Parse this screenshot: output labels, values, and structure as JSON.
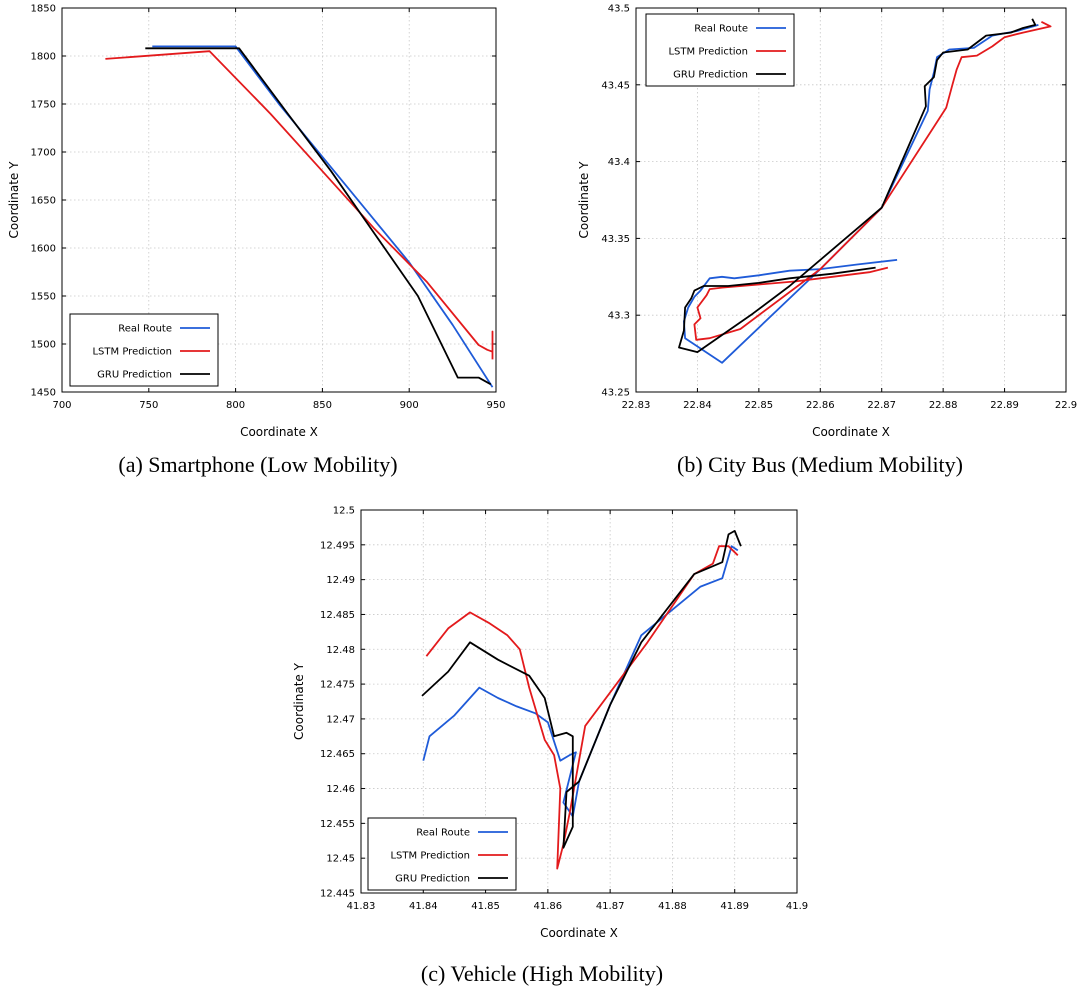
{
  "colors": {
    "real": "#1f5bd8",
    "lstm": "#e31a1c",
    "gru": "#000000"
  },
  "chart_data": [
    {
      "type": "line",
      "caption": "(a) Smartphone (Low Mobility)",
      "xlabel": "Coordinate X",
      "ylabel": "Coordinate Y",
      "xlim": [
        700,
        950
      ],
      "ylim": [
        1450,
        1850
      ],
      "xticks": [
        700,
        750,
        800,
        850,
        900,
        950
      ],
      "yticks": [
        1450,
        1500,
        1550,
        1600,
        1650,
        1700,
        1750,
        1800,
        1850
      ],
      "xtick_labels": [
        "700",
        "750",
        "800",
        "850",
        "900",
        "950"
      ],
      "ytick_labels": [
        "1450",
        "1500",
        "1550",
        "1600",
        "1650",
        "1700",
        "1750",
        "1800",
        "1850"
      ],
      "grid": true,
      "legend_position": "bottom-left",
      "series": [
        {
          "name": "Real Route",
          "color_key": "real",
          "points": [
            [
              752,
              1810
            ],
            [
              800,
              1810
            ],
            [
              825,
              1750
            ],
            [
              850,
              1695
            ],
            [
              875,
              1640
            ],
            [
              900,
              1585
            ],
            [
              925,
              1520
            ],
            [
              948,
              1455
            ]
          ]
        },
        {
          "name": "LSTM Prediction",
          "color_key": "lstm",
          "points": [
            [
              725,
              1797
            ],
            [
              785,
              1805
            ],
            [
              820,
              1740
            ],
            [
              850,
              1680
            ],
            [
              880,
              1620
            ],
            [
              910,
              1565
            ],
            [
              940,
              1499
            ],
            [
              945,
              1494
            ],
            [
              948,
              1492
            ],
            [
              948,
              1513
            ],
            [
              948,
              1484
            ]
          ]
        },
        {
          "name": "GRU Prediction",
          "color_key": "gru",
          "points": [
            [
              748,
              1808
            ],
            [
              802,
              1808
            ],
            [
              830,
              1740
            ],
            [
              855,
              1680
            ],
            [
              880,
              1615
            ],
            [
              905,
              1550
            ],
            [
              928,
              1465
            ],
            [
              940,
              1465
            ],
            [
              947,
              1458
            ]
          ]
        }
      ]
    },
    {
      "type": "line",
      "caption": "(b) City Bus (Medium Mobility)",
      "xlabel": "Coordinate X",
      "ylabel": "Coordinate Y",
      "xlim": [
        22.83,
        22.9
      ],
      "ylim": [
        43.25,
        43.5
      ],
      "xticks": [
        22.83,
        22.84,
        22.85,
        22.86,
        22.87,
        22.88,
        22.89,
        22.9
      ],
      "yticks": [
        43.25,
        43.3,
        43.35,
        43.4,
        43.45,
        43.5
      ],
      "xtick_labels": [
        "22.83",
        "22.84",
        "22.85",
        "22.86",
        "22.87",
        "22.88",
        "22.89",
        "22.9"
      ],
      "ytick_labels": [
        "43.25",
        "43.3",
        "43.35",
        "43.4",
        "43.45",
        "43.5"
      ],
      "grid": true,
      "legend_position": "top-left",
      "series": [
        {
          "name": "Real Route",
          "color_key": "real",
          "points": [
            [
              22.8725,
              43.336
            ],
            [
              22.866,
              43.333
            ],
            [
              22.86,
              43.33
            ],
            [
              22.855,
              43.329
            ],
            [
              22.85,
              43.326
            ],
            [
              22.846,
              43.324
            ],
            [
              22.844,
              43.325
            ],
            [
              22.842,
              43.324
            ],
            [
              22.8405,
              43.316
            ],
            [
              22.8395,
              43.312
            ],
            [
              22.8385,
              43.305
            ],
            [
              22.8378,
              43.296
            ],
            [
              22.838,
              43.285
            ],
            [
              22.844,
              43.269
            ],
            [
              22.86,
              43.33
            ],
            [
              22.87,
              43.37
            ],
            [
              22.8775,
              43.433
            ],
            [
              22.8778,
              43.447
            ],
            [
              22.8785,
              43.458
            ],
            [
              22.879,
              43.468
            ],
            [
              22.881,
              43.473
            ],
            [
              22.885,
              43.474
            ],
            [
              22.888,
              43.482
            ],
            [
              22.892,
              43.485
            ],
            [
              22.8955,
              43.489
            ]
          ]
        },
        {
          "name": "LSTM Prediction",
          "color_key": "lstm",
          "points": [
            [
              22.871,
              43.331
            ],
            [
              22.868,
              43.328
            ],
            [
              22.862,
              43.325
            ],
            [
              22.856,
              43.322
            ],
            [
              22.85,
              43.32
            ],
            [
              22.844,
              43.318
            ],
            [
              22.842,
              43.317
            ],
            [
              22.8415,
              43.313
            ],
            [
              22.84,
              43.305
            ],
            [
              22.8405,
              43.298
            ],
            [
              22.8395,
              43.294
            ],
            [
              22.8398,
              43.284
            ],
            [
              22.842,
              43.285
            ],
            [
              22.847,
              43.291
            ],
            [
              22.86,
              43.33
            ],
            [
              22.87,
              43.37
            ],
            [
              22.8805,
              43.435
            ],
            [
              22.8815,
              43.45
            ],
            [
              22.8822,
              43.46
            ],
            [
              22.883,
              43.468
            ],
            [
              22.8855,
              43.469
            ],
            [
              22.888,
              43.475
            ],
            [
              22.89,
              43.481
            ],
            [
              22.893,
              43.484
            ],
            [
              22.8975,
              43.488
            ],
            [
              22.896,
              43.491
            ]
          ]
        },
        {
          "name": "GRU Prediction",
          "color_key": "gru",
          "points": [
            [
              22.869,
              43.331
            ],
            [
              22.862,
              43.327
            ],
            [
              22.855,
              43.324
            ],
            [
              22.85,
              43.321
            ],
            [
              22.845,
              43.319
            ],
            [
              22.841,
              43.319
            ],
            [
              22.8395,
              43.316
            ],
            [
              22.839,
              43.311
            ],
            [
              22.838,
              43.305
            ],
            [
              22.8378,
              43.29
            ],
            [
              22.837,
              43.279
            ],
            [
              22.84,
              43.276
            ],
            [
              22.849,
              43.301
            ],
            [
              22.855,
              43.319
            ],
            [
              22.87,
              43.37
            ],
            [
              22.8772,
              43.436
            ],
            [
              22.877,
              43.449
            ],
            [
              22.8785,
              43.455
            ],
            [
              22.879,
              43.466
            ],
            [
              22.88,
              43.471
            ],
            [
              22.884,
              43.473
            ],
            [
              22.887,
              43.482
            ],
            [
              22.891,
              43.484
            ],
            [
              22.893,
              43.487
            ],
            [
              22.895,
              43.489
            ],
            [
              22.8945,
              43.493
            ]
          ]
        }
      ]
    },
    {
      "type": "line",
      "caption": "(c) Vehicle (High Mobility)",
      "xlabel": "Coordinate X",
      "ylabel": "Coordinate Y",
      "xlim": [
        41.83,
        41.9
      ],
      "ylim": [
        12.445,
        12.5
      ],
      "xticks": [
        41.83,
        41.84,
        41.85,
        41.86,
        41.87,
        41.88,
        41.89,
        41.9
      ],
      "yticks": [
        12.445,
        12.45,
        12.455,
        12.46,
        12.465,
        12.47,
        12.475,
        12.48,
        12.485,
        12.49,
        12.495,
        12.5
      ],
      "xtick_labels": [
        "41.83",
        "41.84",
        "41.85",
        "41.86",
        "41.87",
        "41.88",
        "41.89",
        "41.9"
      ],
      "ytick_labels": [
        "12.445",
        "12.45",
        "12.455",
        "12.46",
        "12.465",
        "12.47",
        "12.475",
        "12.48",
        "12.485",
        "12.49",
        "12.495",
        "12.5"
      ],
      "grid": true,
      "legend_position": "bottom-left",
      "series": [
        {
          "name": "Real Route",
          "color_key": "real",
          "points": [
            [
              41.84,
              12.464
            ],
            [
              41.841,
              12.4675
            ],
            [
              41.845,
              12.4705
            ],
            [
              41.849,
              12.4745
            ],
            [
              41.852,
              12.473
            ],
            [
              41.855,
              12.4718
            ],
            [
              41.858,
              12.4708
            ],
            [
              41.86,
              12.4695
            ],
            [
              41.862,
              12.464
            ],
            [
              41.8635,
              12.4648
            ],
            [
              41.8645,
              12.4652
            ],
            [
              41.8625,
              12.458
            ],
            [
              41.864,
              12.456
            ],
            [
              41.865,
              12.461
            ],
            [
              41.87,
              12.472
            ],
            [
              41.875,
              12.482
            ],
            [
              41.8845,
              12.489
            ],
            [
              41.888,
              12.4902
            ],
            [
              41.8895,
              12.4948
            ],
            [
              41.8905,
              12.4942
            ]
          ]
        },
        {
          "name": "LSTM Prediction",
          "color_key": "lstm",
          "points": [
            [
              41.8405,
              12.479
            ],
            [
              41.844,
              12.483
            ],
            [
              41.8475,
              12.4853
            ],
            [
              41.8505,
              12.4838
            ],
            [
              41.8535,
              12.482
            ],
            [
              41.8555,
              12.48
            ],
            [
              41.857,
              12.4745
            ],
            [
              41.8595,
              12.467
            ],
            [
              41.861,
              12.4648
            ],
            [
              41.862,
              12.46
            ],
            [
              41.8615,
              12.4485
            ],
            [
              41.8625,
              12.452
            ],
            [
              41.8635,
              12.4565
            ],
            [
              41.866,
              12.469
            ],
            [
              41.876,
              12.481
            ],
            [
              41.8835,
              12.4908
            ],
            [
              41.8865,
              12.4923
            ],
            [
              41.8875,
              12.4948
            ],
            [
              41.889,
              12.4948
            ],
            [
              41.8905,
              12.4935
            ]
          ]
        },
        {
          "name": "GRU Prediction",
          "color_key": "gru",
          "points": [
            [
              41.8398,
              12.4733
            ],
            [
              41.844,
              12.4768
            ],
            [
              41.8475,
              12.481
            ],
            [
              41.852,
              12.4785
            ],
            [
              41.857,
              12.4762
            ],
            [
              41.8595,
              12.473
            ],
            [
              41.861,
              12.4675
            ],
            [
              41.863,
              12.468
            ],
            [
              41.864,
              12.4675
            ],
            [
              41.864,
              12.4545
            ],
            [
              41.8625,
              12.4515
            ],
            [
              41.863,
              12.4595
            ],
            [
              41.865,
              12.461
            ],
            [
              41.87,
              12.472
            ],
            [
              41.875,
              12.481
            ],
            [
              41.8835,
              12.4908
            ],
            [
              41.888,
              12.4925
            ],
            [
              41.889,
              12.4965
            ],
            [
              41.89,
              12.497
            ],
            [
              41.891,
              12.4948
            ]
          ]
        }
      ]
    }
  ]
}
